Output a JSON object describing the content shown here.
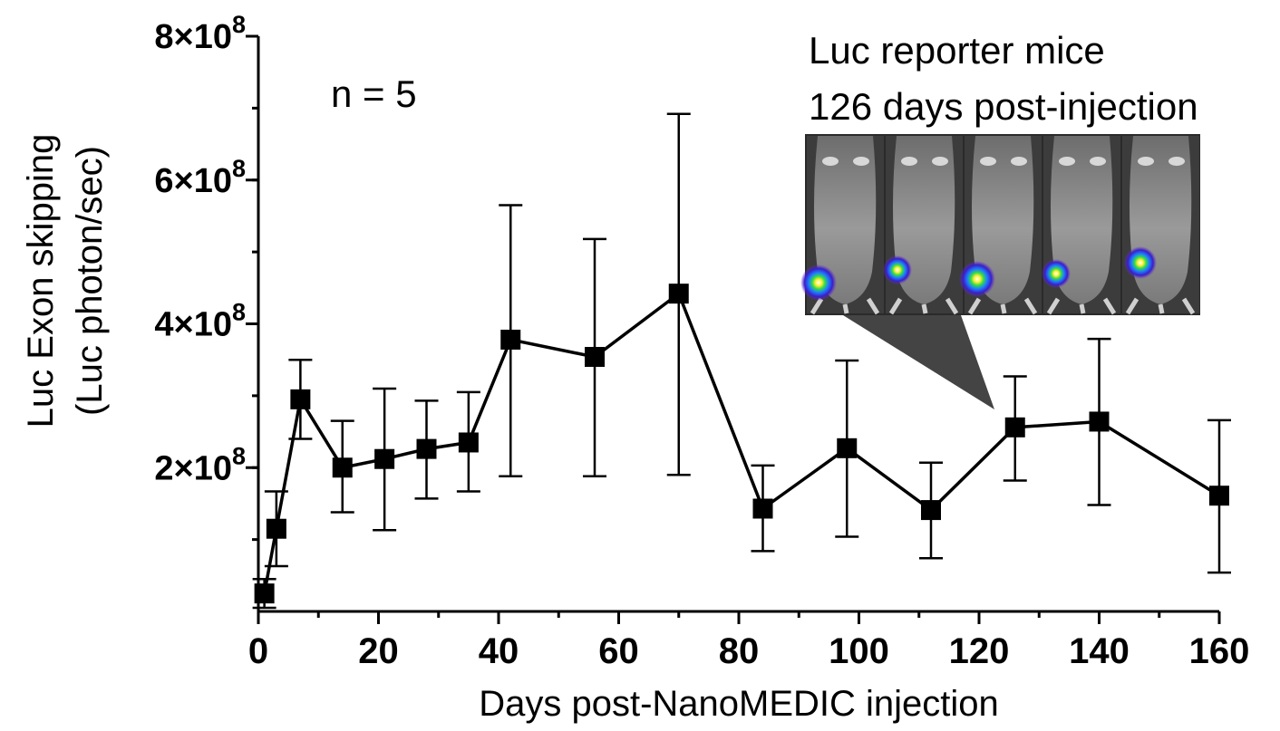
{
  "chart_data": {
    "type": "line",
    "xlabel": "Days post-NanoMEDIC injection",
    "ylabel_line1": "Luc Exon skipping",
    "ylabel_line2": "(Luc photon/sec)",
    "xlim": [
      0,
      160
    ],
    "ylim": [
      0,
      800000000
    ],
    "x_ticks": [
      0,
      20,
      40,
      60,
      80,
      100,
      120,
      140,
      160
    ],
    "x_tick_labels": [
      "0",
      "20",
      "40",
      "60",
      "80",
      "100",
      "120",
      "140",
      "160"
    ],
    "x_minor_step": 10,
    "y_ticks": [
      200000000,
      400000000,
      600000000,
      800000000
    ],
    "y_tick_base": [
      "2×10",
      "4×10",
      "6×10",
      "8×10"
    ],
    "y_tick_exp": [
      "8",
      "8",
      "8",
      "8"
    ],
    "y_minor_step": 100000000,
    "series": [
      {
        "marker": "square",
        "color": "#000000",
        "x": [
          1,
          3,
          7,
          14,
          21,
          28,
          35,
          42,
          56,
          70,
          84,
          98,
          112,
          126,
          140,
          160
        ],
        "y": [
          25000000,
          115000000,
          295000000,
          200000000,
          212000000,
          226000000,
          235000000,
          378000000,
          354000000,
          442000000,
          143000000,
          227000000,
          141000000,
          256000000,
          264000000,
          161000000
        ],
        "err_high": [
          45000000,
          167000000,
          350000000,
          265000000,
          310000000,
          293000000,
          305000000,
          565000000,
          518000000,
          692000000,
          203000000,
          349000000,
          207000000,
          327000000,
          379000000,
          266000000
        ],
        "err_low": [
          5000000,
          63000000,
          240000000,
          138000000,
          113000000,
          157000000,
          167000000,
          188000000,
          188000000,
          190000000,
          84000000,
          104000000,
          74000000,
          182000000,
          148000000,
          54000000
        ]
      }
    ],
    "annotations": {
      "n_label": "n = 5",
      "inset_title_line1": "Luc reporter mice",
      "inset_title_line2": "126 days post-injection",
      "inset_points_to_day": 126
    }
  }
}
